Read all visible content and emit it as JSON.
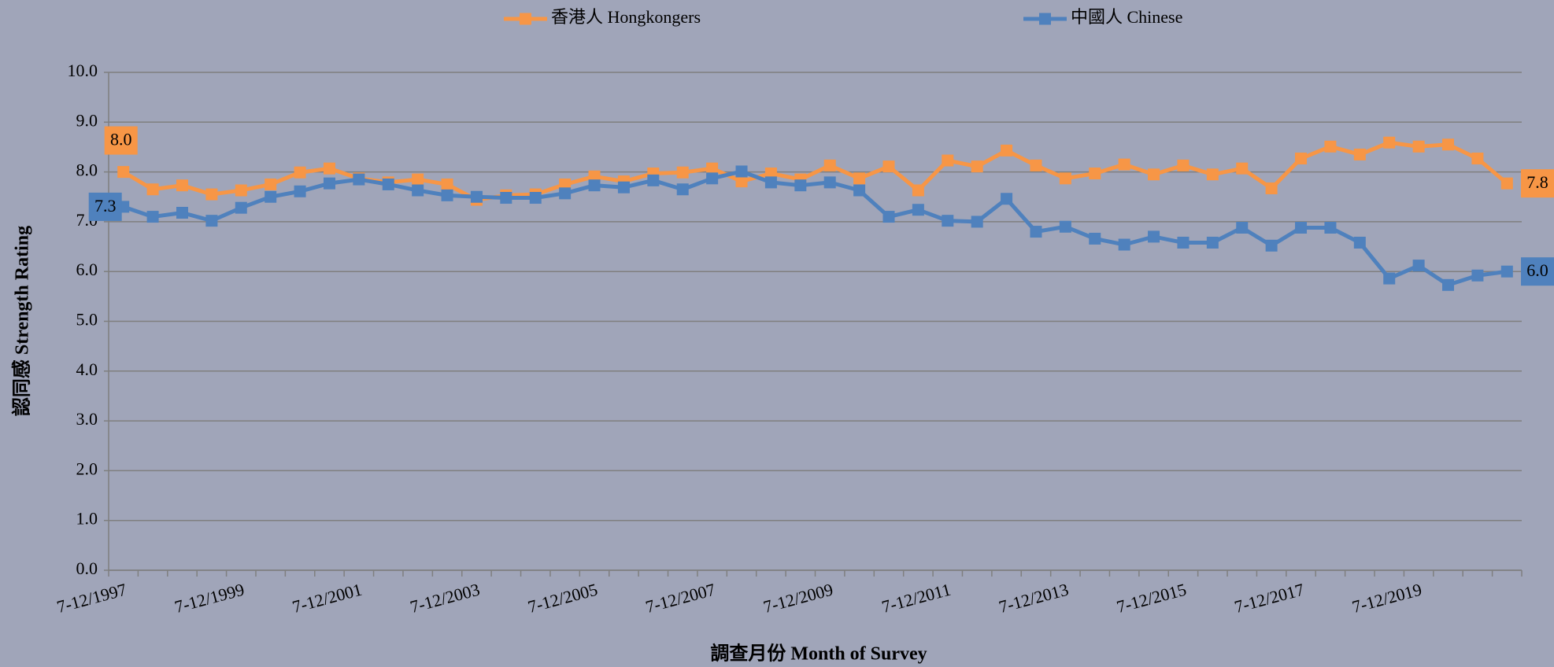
{
  "chart_data": {
    "type": "line",
    "y_label": "認同感 Strength Rating",
    "x_label": "調查月份 Month of Survey",
    "categories": [
      "7-12/1997",
      null,
      null,
      null,
      "7-12/1999",
      null,
      null,
      null,
      "7-12/2001",
      null,
      null,
      null,
      "7-12/2003",
      null,
      null,
      null,
      "7-12/2005",
      null,
      null,
      null,
      "7-12/2007",
      null,
      null,
      null,
      "7-12/2009",
      null,
      null,
      null,
      "7-12/2011",
      null,
      null,
      null,
      "7-12/2013",
      null,
      null,
      null,
      "7-12/2015",
      null,
      null,
      null,
      "7-12/2017",
      null,
      null,
      null,
      "7-12/2019",
      null,
      null,
      null
    ],
    "series": [
      {
        "name": "香港人 Hongkongers",
        "color": "#f79646",
        "values": [
          8.0,
          7.65,
          7.73,
          7.55,
          7.63,
          7.75,
          7.99,
          8.07,
          7.87,
          7.79,
          7.85,
          7.75,
          7.44,
          7.53,
          7.55,
          7.75,
          7.91,
          7.81,
          7.97,
          7.99,
          8.07,
          7.81,
          7.97,
          7.85,
          8.13,
          7.87,
          8.11,
          7.63,
          8.23,
          8.11,
          8.43,
          8.13,
          7.87,
          7.97,
          8.15,
          7.95,
          8.13,
          7.95,
          8.07,
          7.67,
          8.27,
          8.51,
          8.35,
          8.59,
          8.51,
          8.55,
          8.27,
          7.77
        ],
        "value_labels": [
          "8.0",
          null,
          null,
          null,
          null,
          null,
          null,
          null,
          null,
          null,
          null,
          null,
          null,
          null,
          null,
          null,
          null,
          null,
          null,
          null,
          null,
          null,
          null,
          null,
          null,
          null,
          null,
          null,
          null,
          null,
          null,
          null,
          null,
          null,
          null,
          null,
          null,
          null,
          null,
          null,
          null,
          null,
          null,
          null,
          null,
          null,
          null,
          "7.8"
        ]
      },
      {
        "name": "中國人 Chinese",
        "color": "#4f81bd",
        "values": [
          7.3,
          7.1,
          7.18,
          7.02,
          7.28,
          7.5,
          7.61,
          7.77,
          7.85,
          7.75,
          7.63,
          7.53,
          7.5,
          7.48,
          7.48,
          7.57,
          7.73,
          7.69,
          7.83,
          7.65,
          7.87,
          8.01,
          7.79,
          7.73,
          7.79,
          7.63,
          7.1,
          7.24,
          7.02,
          7.0,
          7.46,
          6.8,
          6.9,
          6.66,
          6.54,
          6.7,
          6.58,
          6.58,
          6.88,
          6.52,
          6.88,
          6.88,
          6.58,
          5.86,
          6.12,
          5.73,
          5.92,
          6.0
        ],
        "value_labels": [
          "7.3",
          null,
          null,
          null,
          null,
          null,
          null,
          null,
          null,
          null,
          null,
          null,
          null,
          null,
          null,
          null,
          null,
          null,
          null,
          null,
          null,
          null,
          null,
          null,
          null,
          null,
          null,
          null,
          null,
          null,
          null,
          null,
          null,
          null,
          null,
          null,
          null,
          null,
          null,
          null,
          null,
          null,
          null,
          null,
          null,
          null,
          null,
          "6.0"
        ]
      }
    ],
    "ylim": [
      0,
      10
    ],
    "yticks": [
      {
        "value": 0,
        "label": "0.0"
      },
      {
        "value": 1,
        "label": "1.0"
      },
      {
        "value": 2,
        "label": "2.0"
      },
      {
        "value": 3,
        "label": "3.0"
      },
      {
        "value": 4,
        "label": "4.0"
      },
      {
        "value": 5,
        "label": "5.0"
      },
      {
        "value": 6,
        "label": "6.0"
      },
      {
        "value": 7,
        "label": "7.0"
      },
      {
        "value": 8,
        "label": "8.0"
      },
      {
        "value": 9,
        "label": "9.0"
      },
      {
        "value": 10,
        "label": "10.0"
      }
    ],
    "grid": true,
    "legend": "top"
  }
}
